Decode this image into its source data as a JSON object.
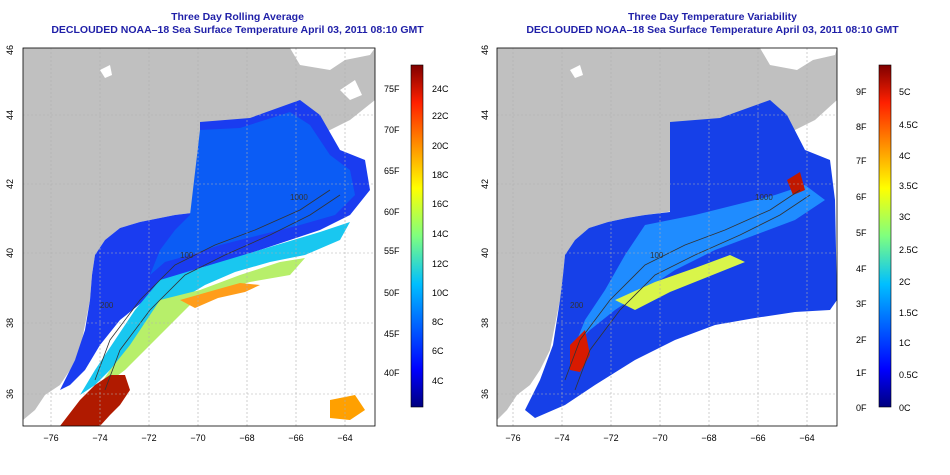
{
  "panels": [
    {
      "title": "Three Day Rolling Average",
      "subtitle": "DECLOUDED NOAA–18 Sea Surface Temperature April 03, 2011 08:10 GMT",
      "x_ticks": [
        "−76",
        "−74",
        "−72",
        "−70",
        "−68",
        "−66",
        "−64"
      ],
      "y_ticks": [
        "36",
        "38",
        "40",
        "42",
        "44",
        "46"
      ],
      "colorbar_celsius": [
        "24C",
        "22C",
        "20C",
        "18C",
        "16C",
        "14C",
        "12C",
        "10C",
        "8C",
        "6C",
        "4C"
      ],
      "colorbar_fahrenheit": [
        "75F",
        "70F",
        "65F",
        "60F",
        "55F",
        "50F",
        "45F",
        "40F"
      ],
      "contour_labels": [
        "200",
        "100",
        "1000",
        "200",
        "100"
      ]
    },
    {
      "title": "Three Day Temperature Variability",
      "subtitle": "DECLOUDED NOAA–18 Sea Surface Temperature April 03, 2011 08:10 GMT",
      "x_ticks": [
        "−76",
        "−74",
        "−72",
        "−70",
        "−68",
        "−66",
        "−64"
      ],
      "y_ticks": [
        "36",
        "38",
        "40",
        "42",
        "44",
        "46"
      ],
      "colorbar_celsius": [
        "5C",
        "4.5C",
        "4C",
        "3.5C",
        "3C",
        "2.5C",
        "2C",
        "1.5C",
        "1C",
        "0.5C",
        "0C"
      ],
      "colorbar_fahrenheit": [
        "9F",
        "8F",
        "7F",
        "6F",
        "5F",
        "4F",
        "3F",
        "2F",
        "1F",
        "0F"
      ],
      "contour_labels": [
        "200",
        "100",
        "1000",
        "200",
        "100"
      ]
    }
  ],
  "colors": {
    "title": "#1f1fa8",
    "land": "#c0c0c0",
    "no_data": "#ffffff",
    "grid": "#b0b0b0",
    "contour": "#333333"
  },
  "colormap": [
    "#00007f",
    "#0000ff",
    "#007fff",
    "#00ffff",
    "#7fff7f",
    "#ffff00",
    "#ff7f00",
    "#ff0000",
    "#7f0000"
  ]
}
